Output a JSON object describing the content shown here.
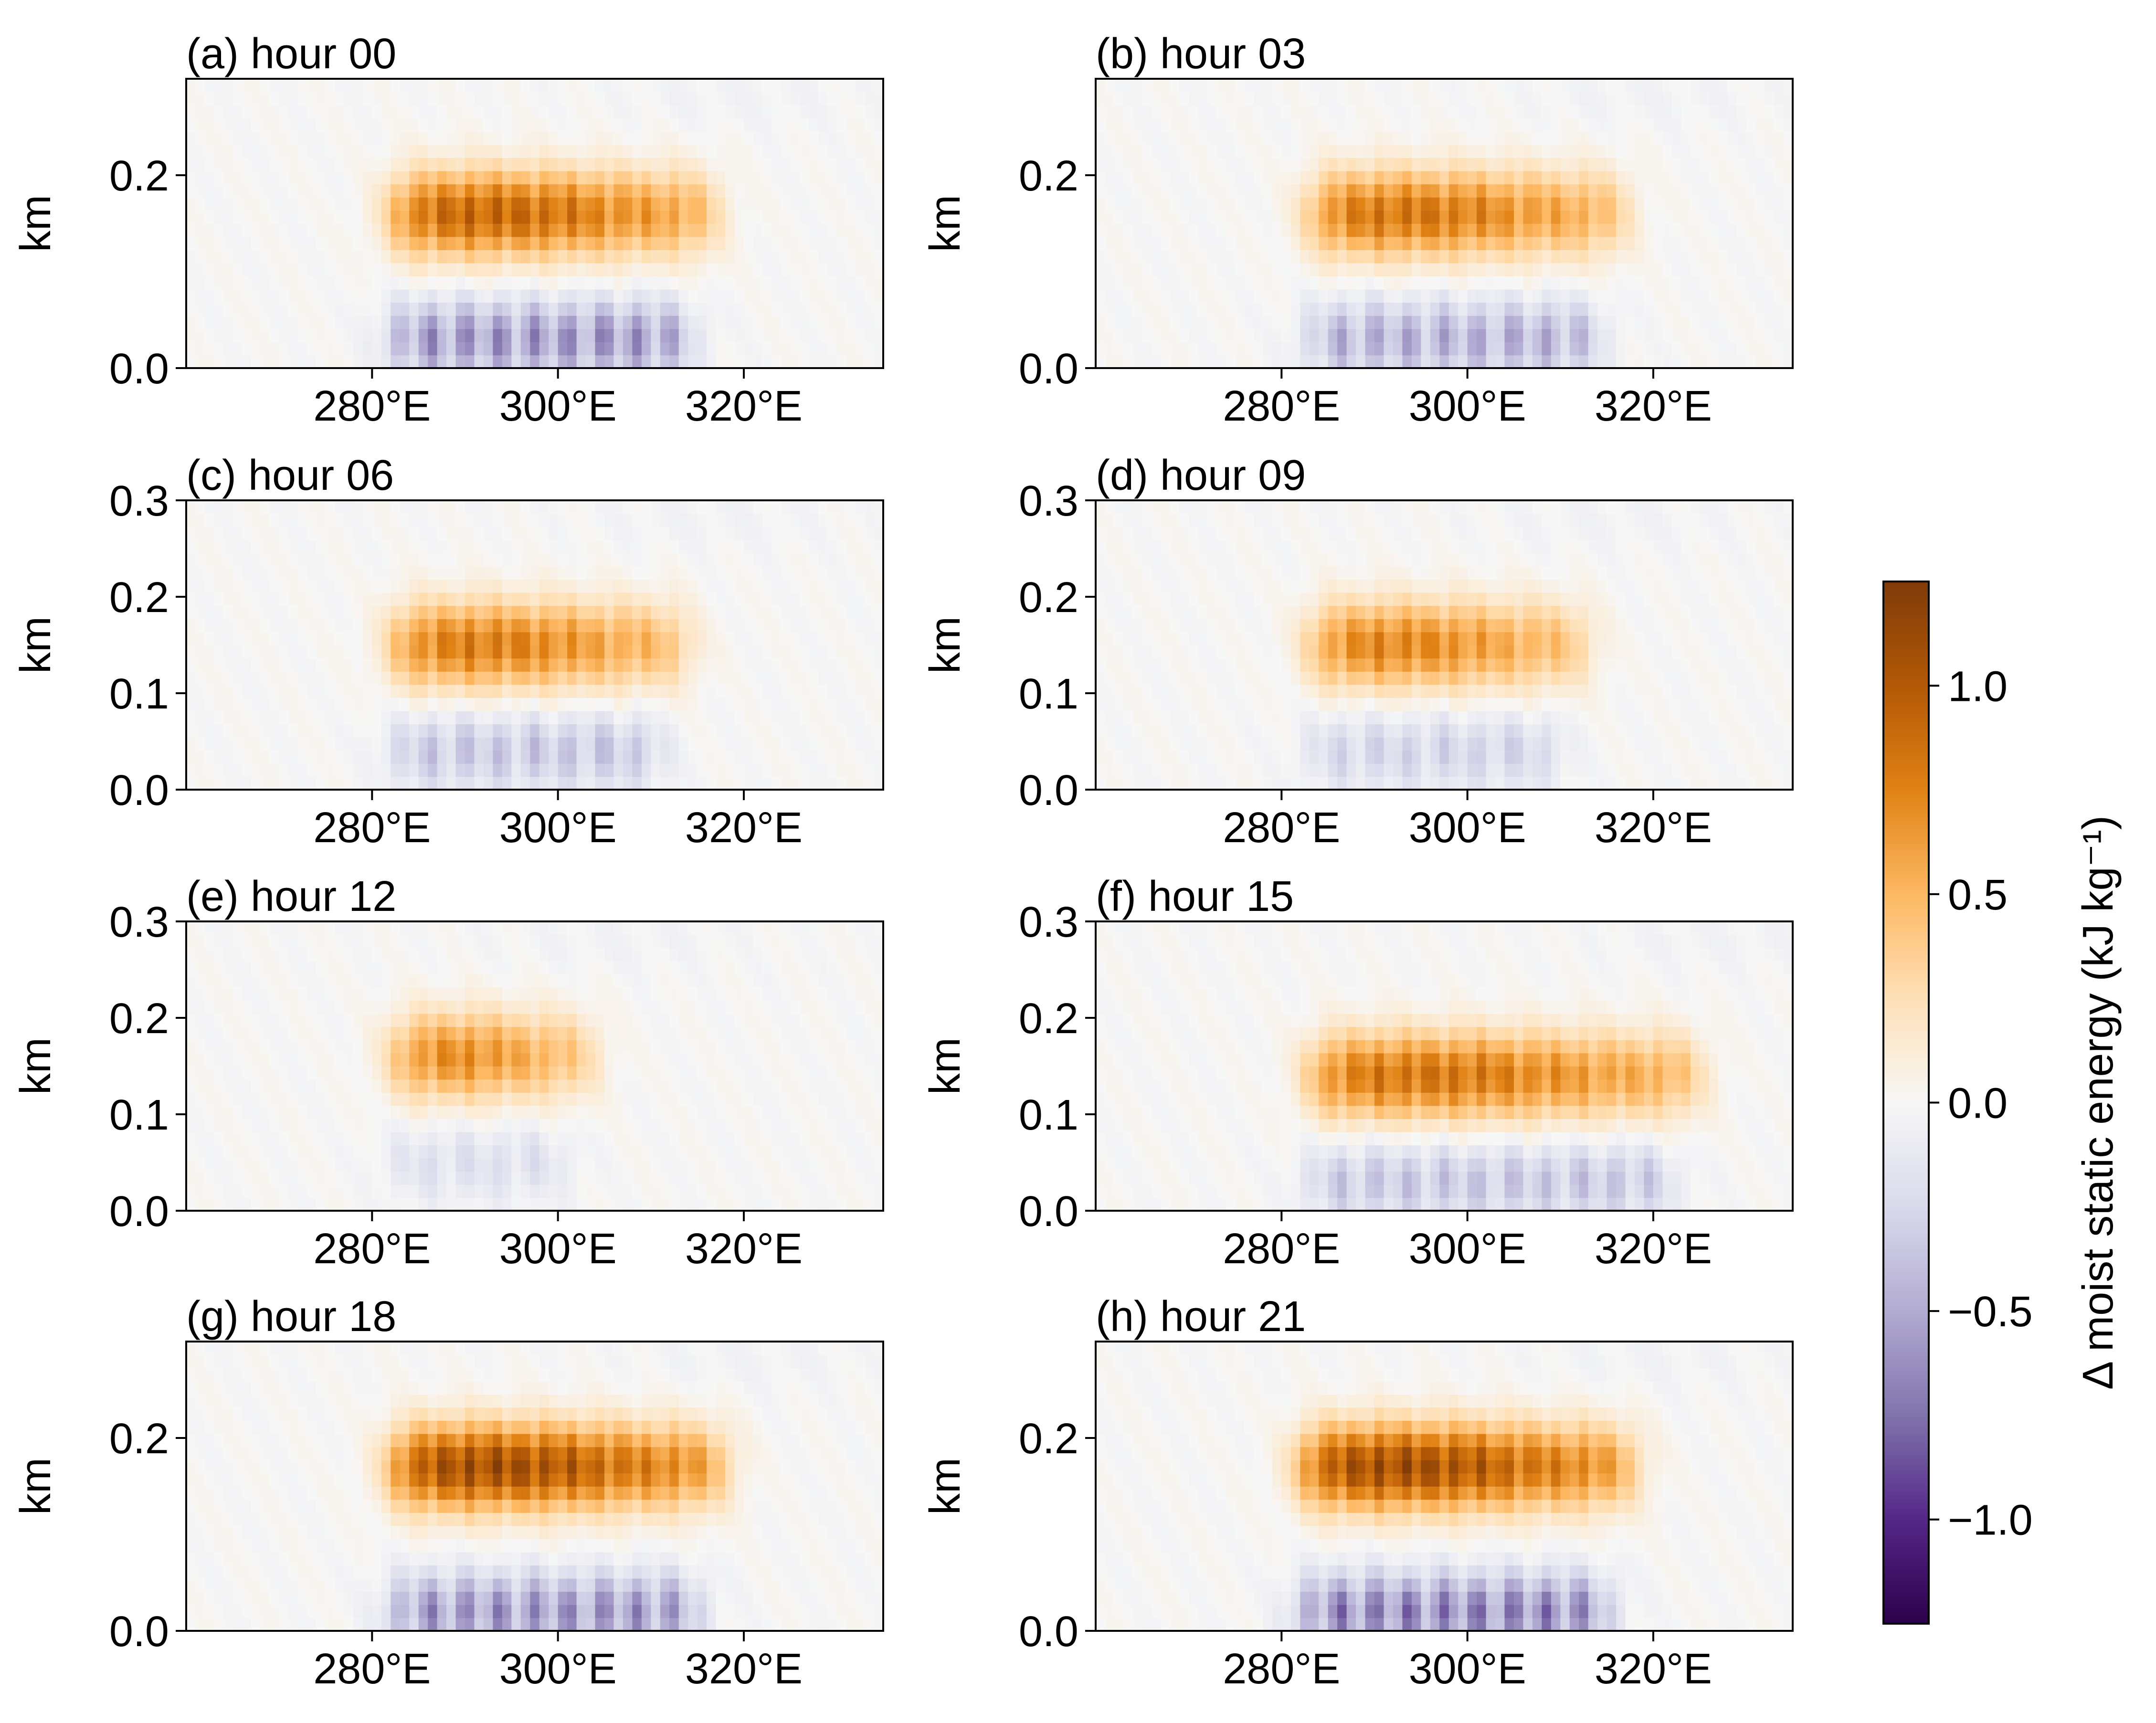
{
  "figure": {
    "colorbar": {
      "label": "Δ moist static energy (kJ kg⁻¹)",
      "range": [
        -1.25,
        1.25
      ],
      "ticks": [
        "1.0",
        "0.5",
        "0.0",
        "−0.5",
        "−1.0"
      ],
      "tick_values": [
        1.0,
        0.5,
        0.0,
        -0.5,
        -1.0
      ],
      "colormap": "PuOr_r",
      "stops": [
        "#2d004b",
        "#542788",
        "#8073ac",
        "#b2abd2",
        "#d8daeb",
        "#f7f7f7",
        "#fee0b6",
        "#fdb863",
        "#e08214",
        "#b35806",
        "#7f3b08"
      ]
    }
  },
  "chart_data": [
    {
      "type": "heatmap",
      "title": "(a) hour 00",
      "ylabel": "km",
      "xlim": [
        260,
        335
      ],
      "ylim": [
        0,
        0.3
      ],
      "x_ticks": [
        "280°E",
        "300°E",
        "320°E"
      ],
      "x_tick_values": [
        280,
        300,
        320
      ],
      "y_ticks": [
        "0.0",
        "0.2"
      ],
      "y_tick_values": [
        0.0,
        0.2
      ],
      "anomaly": {
        "west": 282,
        "east": 317,
        "pos_peak": 1.05,
        "pos_center_km": 0.16,
        "neg_peak": -0.75,
        "neg_center_km": 0.03
      }
    },
    {
      "type": "heatmap",
      "title": "(b) hour 03",
      "ylabel": "km",
      "xlim": [
        260,
        335
      ],
      "ylim": [
        0,
        0.3
      ],
      "x_ticks": [
        "280°E",
        "300°E",
        "320°E"
      ],
      "x_tick_values": [
        280,
        300,
        320
      ],
      "y_ticks": [
        "0.0",
        "0.2"
      ],
      "y_tick_values": [
        0.0,
        0.2
      ],
      "anomaly": {
        "west": 283,
        "east": 317,
        "pos_peak": 0.95,
        "pos_center_km": 0.16,
        "neg_peak": -0.6,
        "neg_center_km": 0.03
      }
    },
    {
      "type": "heatmap",
      "title": "(c) hour 06",
      "ylabel": "km",
      "xlim": [
        260,
        335
      ],
      "ylim": [
        0,
        0.3
      ],
      "x_ticks": [
        "280°E",
        "300°E",
        "320°E"
      ],
      "x_tick_values": [
        280,
        300,
        320
      ],
      "y_ticks": [
        "0.0",
        "0.1",
        "0.2",
        "0.3"
      ],
      "y_tick_values": [
        0.0,
        0.1,
        0.2,
        0.3
      ],
      "anomaly": {
        "west": 282,
        "east": 314,
        "pos_peak": 0.9,
        "pos_center_km": 0.15,
        "neg_peak": -0.45,
        "neg_center_km": 0.04
      }
    },
    {
      "type": "heatmap",
      "title": "(d) hour 09",
      "ylabel": "km",
      "xlim": [
        260,
        335
      ],
      "ylim": [
        0,
        0.3
      ],
      "x_ticks": [
        "280°E",
        "300°E",
        "320°E"
      ],
      "x_tick_values": [
        280,
        300,
        320
      ],
      "y_ticks": [
        "0.0",
        "0.1",
        "0.2",
        "0.3"
      ],
      "y_tick_values": [
        0.0,
        0.1,
        0.2,
        0.3
      ],
      "anomaly": {
        "west": 283,
        "east": 313,
        "pos_peak": 0.85,
        "pos_center_km": 0.15,
        "neg_peak": -0.35,
        "neg_center_km": 0.04
      }
    },
    {
      "type": "heatmap",
      "title": "(e) hour 12",
      "ylabel": "km",
      "xlim": [
        260,
        335
      ],
      "ylim": [
        0,
        0.3
      ],
      "x_ticks": [
        "280°E",
        "300°E",
        "320°E"
      ],
      "x_tick_values": [
        280,
        300,
        320
      ],
      "y_ticks": [
        "0.0",
        "0.1",
        "0.2",
        "0.3"
      ],
      "y_tick_values": [
        0.0,
        0.1,
        0.2,
        0.3
      ],
      "anomaly": {
        "west": 282,
        "east": 304,
        "pos_peak": 0.8,
        "pos_center_km": 0.16,
        "neg_peak": -0.25,
        "neg_center_km": 0.05
      }
    },
    {
      "type": "heatmap",
      "title": "(f) hour 15",
      "ylabel": "km",
      "xlim": [
        260,
        335
      ],
      "ylim": [
        0,
        0.3
      ],
      "x_ticks": [
        "280°E",
        "300°E",
        "320°E"
      ],
      "x_tick_values": [
        280,
        300,
        320
      ],
      "y_ticks": [
        "0.0",
        "0.1",
        "0.2",
        "0.3"
      ],
      "y_tick_values": [
        0.0,
        0.1,
        0.2,
        0.3
      ],
      "anomaly": {
        "west": 283,
        "east": 325,
        "pos_peak": 0.95,
        "pos_center_km": 0.14,
        "neg_peak": -0.45,
        "neg_center_km": 0.03
      }
    },
    {
      "type": "heatmap",
      "title": "(g) hour 18",
      "ylabel": "km",
      "xlim": [
        260,
        335
      ],
      "ylim": [
        0,
        0.3
      ],
      "x_ticks": [
        "280°E",
        "300°E",
        "320°E"
      ],
      "x_tick_values": [
        280,
        300,
        320
      ],
      "y_ticks": [
        "0.0",
        "0.2"
      ],
      "y_tick_values": [
        0.0,
        0.2
      ],
      "anomaly": {
        "west": 282,
        "east": 318,
        "pos_peak": 1.25,
        "pos_center_km": 0.17,
        "neg_peak": -0.75,
        "neg_center_km": 0.02
      }
    },
    {
      "type": "heatmap",
      "title": "(h) hour 21",
      "ylabel": "km",
      "xlim": [
        260,
        335
      ],
      "ylim": [
        0,
        0.3
      ],
      "x_ticks": [
        "280°E",
        "300°E",
        "320°E"
      ],
      "x_tick_values": [
        280,
        300,
        320
      ],
      "y_ticks": [
        "0.0",
        "0.2"
      ],
      "y_tick_values": [
        0.0,
        0.2
      ],
      "anomaly": {
        "west": 282,
        "east": 318,
        "pos_peak": 1.25,
        "pos_center_km": 0.17,
        "neg_peak": -0.85,
        "neg_center_km": 0.02
      }
    }
  ]
}
